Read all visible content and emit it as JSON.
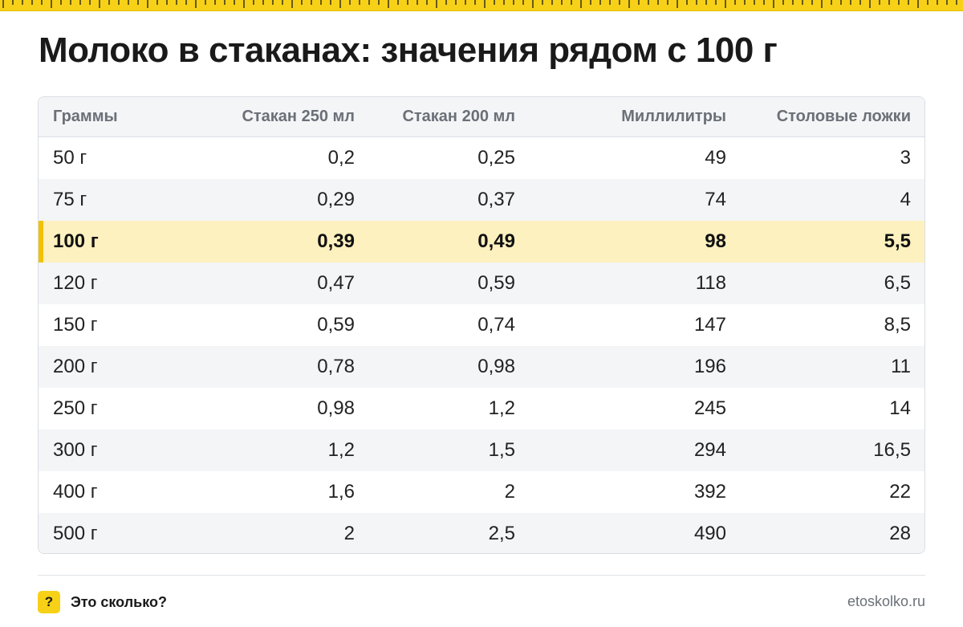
{
  "title": "Молоко в стаканах: значения рядом с 100 г",
  "accent_color": "#f7d117",
  "highlight_color": "#fdf1bf",
  "table": {
    "headers": [
      "Граммы",
      "Стакан 250 мл",
      "Стакан 200 мл",
      "Миллилитры",
      "Столовые ложки"
    ],
    "highlighted_row": 2,
    "rows": [
      [
        "50 г",
        "0,2",
        "0,25",
        "49",
        "3"
      ],
      [
        "75 г",
        "0,29",
        "0,37",
        "74",
        "4"
      ],
      [
        "100 г",
        "0,39",
        "0,49",
        "98",
        "5,5"
      ],
      [
        "120 г",
        "0,47",
        "0,59",
        "118",
        "6,5"
      ],
      [
        "150 г",
        "0,59",
        "0,74",
        "147",
        "8,5"
      ],
      [
        "200 г",
        "0,78",
        "0,98",
        "196",
        "11"
      ],
      [
        "250 г",
        "0,98",
        "1,2",
        "245",
        "14"
      ],
      [
        "300 г",
        "1,2",
        "1,5",
        "294",
        "16,5"
      ],
      [
        "400 г",
        "1,6",
        "2",
        "392",
        "22"
      ],
      [
        "500 г",
        "2",
        "2,5",
        "490",
        "28"
      ]
    ]
  },
  "footer": {
    "icon_glyph": "?",
    "icon_name": "question-icon",
    "brand": "Это сколько?",
    "site": "etoskolko.ru"
  }
}
